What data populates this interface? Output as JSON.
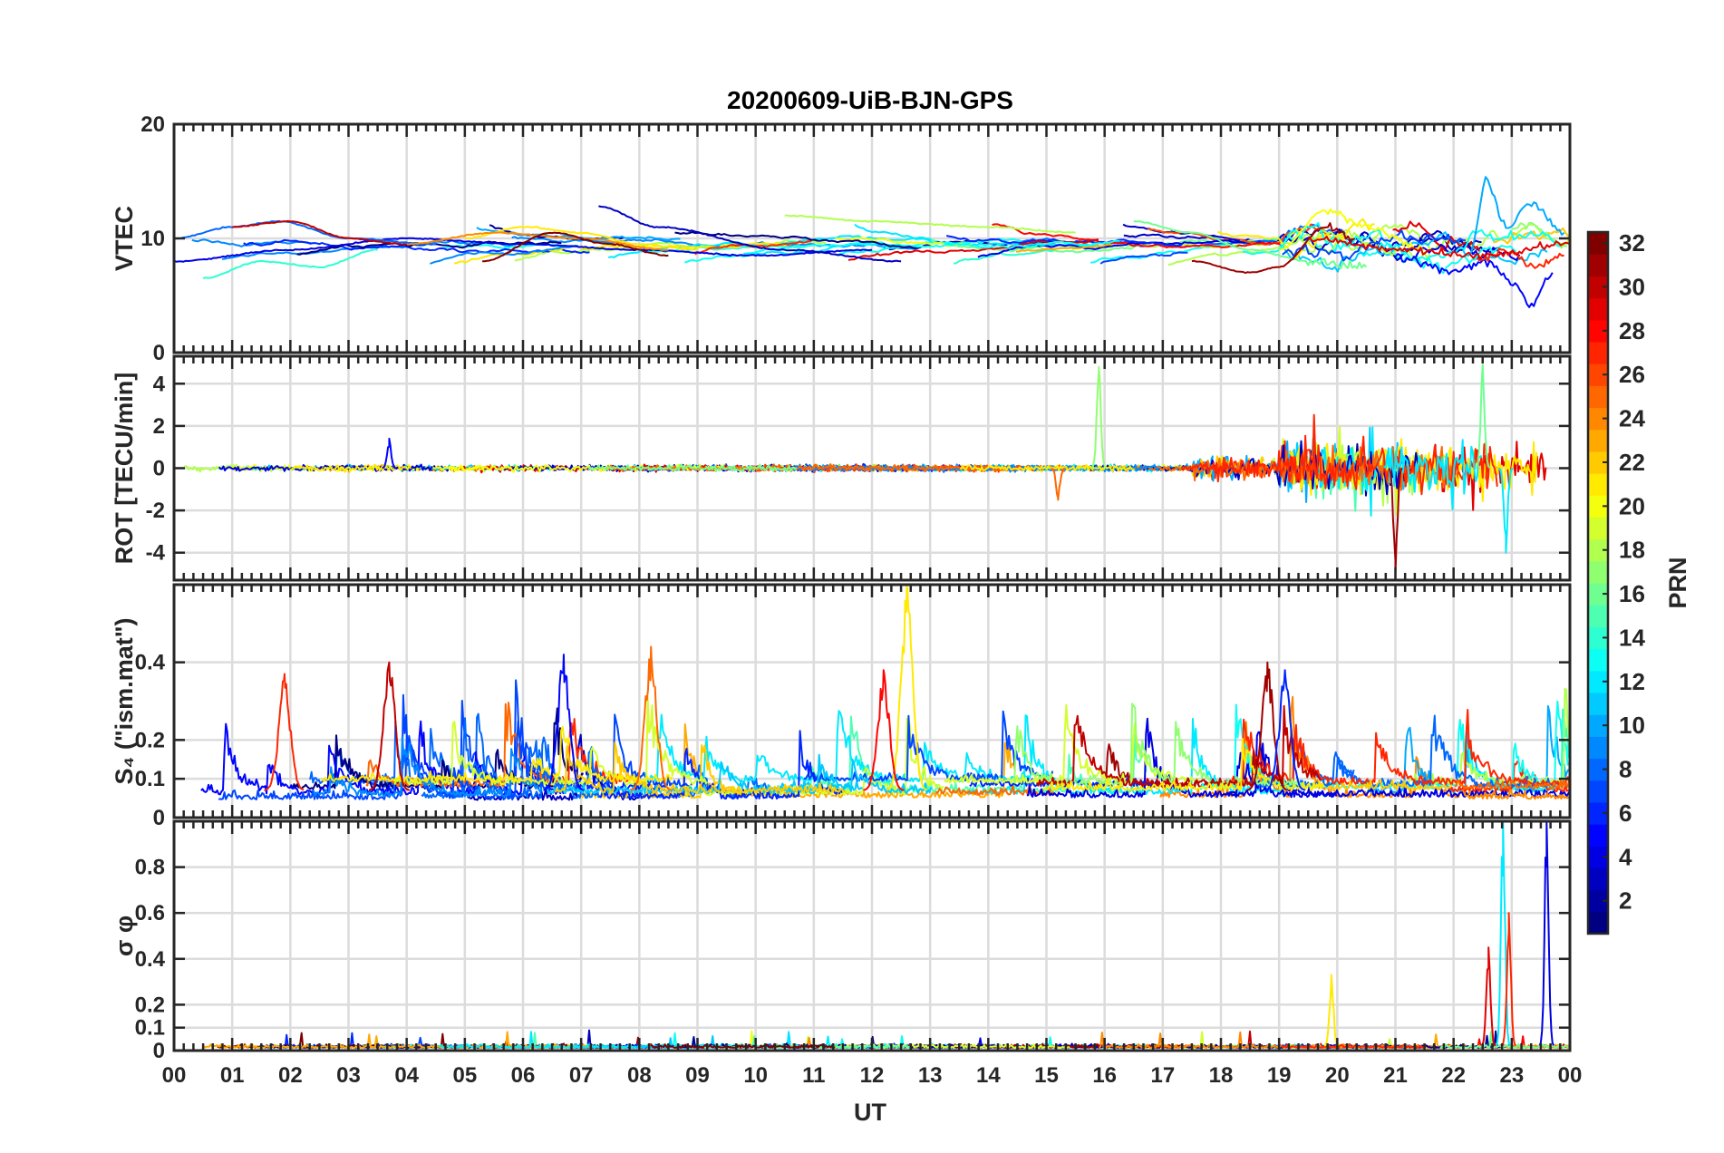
{
  "chart_data": {
    "type": "line",
    "title": "20200609-UiB-BJN-GPS",
    "xlabel": "UT",
    "x_tick_labels": [
      "00",
      "01",
      "02",
      "03",
      "04",
      "05",
      "06",
      "07",
      "08",
      "09",
      "10",
      "11",
      "12",
      "13",
      "14",
      "15",
      "16",
      "17",
      "18",
      "19",
      "20",
      "21",
      "22",
      "23",
      "00"
    ],
    "xlim": [
      0,
      24
    ],
    "panels": [
      {
        "id": "vtec",
        "ylabel": "VTEC",
        "ylim": [
          0,
          20
        ],
        "yticks": [
          0,
          10,
          20
        ],
        "ytick_labels": [
          "0",
          "10",
          "20"
        ],
        "behavior": "Smooth per-satellite VTEC arcs around 7–12 TECU for 00–19 UT; increased variability with peaks near 12–15 TECU and dips toward 4 TECU after 19 UT.",
        "series": [
          {
            "prn": 4,
            "x": [
              0,
              2,
              4,
              6,
              8,
              10,
              12
            ],
            "y": [
              8,
              9,
              10,
              9.5,
              9,
              8.5,
              9
            ]
          },
          {
            "prn": 8,
            "x": [
              0,
              1,
              1.8,
              3,
              4.5
            ],
            "y": [
              10,
              11,
              11.5,
              10,
              9.5
            ]
          },
          {
            "prn": 14,
            "x": [
              0.5,
              1.5,
              2.5,
              3.5
            ],
            "y": [
              6.5,
              8,
              7.5,
              9
            ]
          },
          {
            "prn": 18,
            "x": [
              10.5,
              12,
              14,
              15.5
            ],
            "y": [
              12,
              11.5,
              11,
              10.5
            ]
          },
          {
            "prn": 21,
            "x": [
              5,
              6,
              7,
              8,
              9
            ],
            "y": [
              10,
              11,
              10.5,
              9.5,
              9
            ]
          },
          {
            "prn": 24,
            "x": [
              4,
              5.5,
              7,
              8.5
            ],
            "y": [
              9.5,
              10.5,
              10,
              9
            ]
          },
          {
            "prn": 30,
            "x": [
              1,
              2,
              3,
              4
            ],
            "y": [
              11,
              11.5,
              10,
              9.5
            ]
          },
          {
            "prn": 32,
            "x": [
              5.3,
              6.5,
              7.5,
              8.5
            ],
            "y": [
              8,
              10.5,
              9.5,
              8.5
            ]
          },
          {
            "prn": 3,
            "x": [
              7.3,
              8.3,
              10.5,
              12.5
            ],
            "y": [
              12.8,
              11,
              9,
              8
            ]
          },
          {
            "prn": 16,
            "x": [
              16.5,
              17.5,
              18.5,
              19.5,
              20.5
            ],
            "y": [
              11.5,
              10.5,
              9,
              8,
              7.5
            ]
          },
          {
            "prn": 31,
            "x": [
              17.5,
              18.5,
              19,
              19.8,
              20.3
            ],
            "y": [
              8,
              7,
              7.5,
              11,
              10
            ]
          },
          {
            "prn": 20,
            "x": [
              19,
              19.8,
              20.5,
              21.5
            ],
            "y": [
              9,
              12.5,
              11,
              9
            ]
          },
          {
            "prn": 5,
            "x": [
              21,
              22,
              22.5,
              23.1,
              23.3,
              23.7
            ],
            "y": [
              8.5,
              7,
              8,
              6,
              4,
              7
            ]
          },
          {
            "prn": 10,
            "x": [
              22.3,
              22.55,
              22.9,
              23.3,
              23.9
            ],
            "y": [
              9,
              15,
              11,
              13,
              10.5
            ]
          },
          {
            "prn": 27,
            "x": [
              22.4,
              22.9,
              23.4,
              23.9
            ],
            "y": [
              8,
              9,
              7.5,
              8.5
            ]
          },
          {
            "prn": 29,
            "x": [
              19.5,
              21,
              22.5,
              24
            ],
            "y": [
              10,
              9,
              8.5,
              9.5
            ]
          }
        ]
      },
      {
        "id": "rot",
        "ylabel": "ROT [TECU/min]",
        "ylim": [
          -5.3,
          5.3
        ],
        "yticks": [
          -4,
          -2,
          0,
          2,
          4
        ],
        "ytick_labels": [
          "-4",
          "-2",
          "0",
          "2",
          "4"
        ],
        "behavior": "ROT near 0 (within about ±0.5) for 00–18 UT with isolated spikes at 03.7 UT (~1.4), 15.2 UT (~-1.5) and 15.9 UT (~4.8); strong fluctuations of about ±3 after 19 UT with extremes near -5 at 21 UT and +5 at 22.5 UT.",
        "series": [
          {
            "prn": 17,
            "x": [
              15.9
            ],
            "y": [
              4.8
            ]
          },
          {
            "prn": 5,
            "x": [
              3.7
            ],
            "y": [
              1.4
            ]
          },
          {
            "prn": 25,
            "x": [
              15.2
            ],
            "y": [
              -1.5
            ]
          },
          {
            "prn": 31,
            "x": [
              21.0
            ],
            "y": [
              -5.0
            ]
          },
          {
            "prn": 16,
            "x": [
              22.5
            ],
            "y": [
              4.9
            ]
          },
          {
            "prn": 12,
            "x": [
              22.9
            ],
            "y": [
              -4.0
            ]
          }
        ]
      },
      {
        "id": "s4",
        "ylabel": "S₄ (\"ism.mat\")",
        "ylim": [
          0,
          0.6
        ],
        "yticks": [
          0,
          0.1,
          0.2,
          0.4
        ],
        "ytick_labels": [
          "0",
          "0.1",
          "0.2",
          "0.4"
        ],
        "behavior": "S4 baseline 0.05–0.1 with frequent spikes of 0.2–0.4 throughout the day; maximum about 0.6 near 12.6 UT.",
        "series": [
          {
            "prn": 21,
            "x": [
              12.6
            ],
            "y": [
              0.6
            ]
          },
          {
            "prn": 5,
            "x": [
              6.7
            ],
            "y": [
              0.42
            ]
          },
          {
            "prn": 25,
            "x": [
              8.2
            ],
            "y": [
              0.44
            ]
          },
          {
            "prn": 30,
            "x": [
              3.7
            ],
            "y": [
              0.4
            ]
          },
          {
            "prn": 31,
            "x": [
              18.8
            ],
            "y": [
              0.4
            ]
          },
          {
            "prn": 28,
            "x": [
              12.2
            ],
            "y": [
              0.38
            ]
          },
          {
            "prn": 27,
            "x": [
              1.9
            ],
            "y": [
              0.37
            ]
          },
          {
            "prn": 6,
            "x": [
              19.1
            ],
            "y": [
              0.38
            ]
          }
        ]
      },
      {
        "id": "sigma_phi",
        "ylabel": "σ φ",
        "ylim": [
          0,
          1
        ],
        "yticks": [
          0,
          0.1,
          0.2,
          0.4,
          0.6,
          0.8
        ],
        "ytick_labels": [
          "0",
          "0.1",
          "0.2",
          "0.4",
          "0.6",
          "0.8"
        ],
        "behavior": "Sigma-phi near 0.01–0.05 for most of the day; peak near 0.33 at 19.9 UT; large spikes up to about 1.0 between 22.5 and 23.7 UT.",
        "series": [
          {
            "prn": 21,
            "x": [
              19.9
            ],
            "y": [
              0.33
            ]
          },
          {
            "prn": 12,
            "x": [
              22.85
            ],
            "y": [
              1.0
            ]
          },
          {
            "prn": 4,
            "x": [
              23.6
            ],
            "y": [
              1.0
            ]
          },
          {
            "prn": 27,
            "x": [
              22.95
            ],
            "y": [
              0.6
            ]
          },
          {
            "prn": 29,
            "x": [
              22.6
            ],
            "y": [
              0.45
            ]
          }
        ]
      }
    ],
    "colorbar": {
      "label": "PRN",
      "colormap": "jet",
      "range": [
        1,
        32
      ],
      "ticks": [
        2,
        4,
        6,
        8,
        10,
        12,
        14,
        16,
        18,
        20,
        22,
        24,
        26,
        28,
        30,
        32
      ],
      "tick_labels": [
        "2",
        "4",
        "6",
        "8",
        "10",
        "12",
        "14",
        "16",
        "18",
        "20",
        "22",
        "24",
        "26",
        "28",
        "30",
        "32"
      ]
    }
  }
}
